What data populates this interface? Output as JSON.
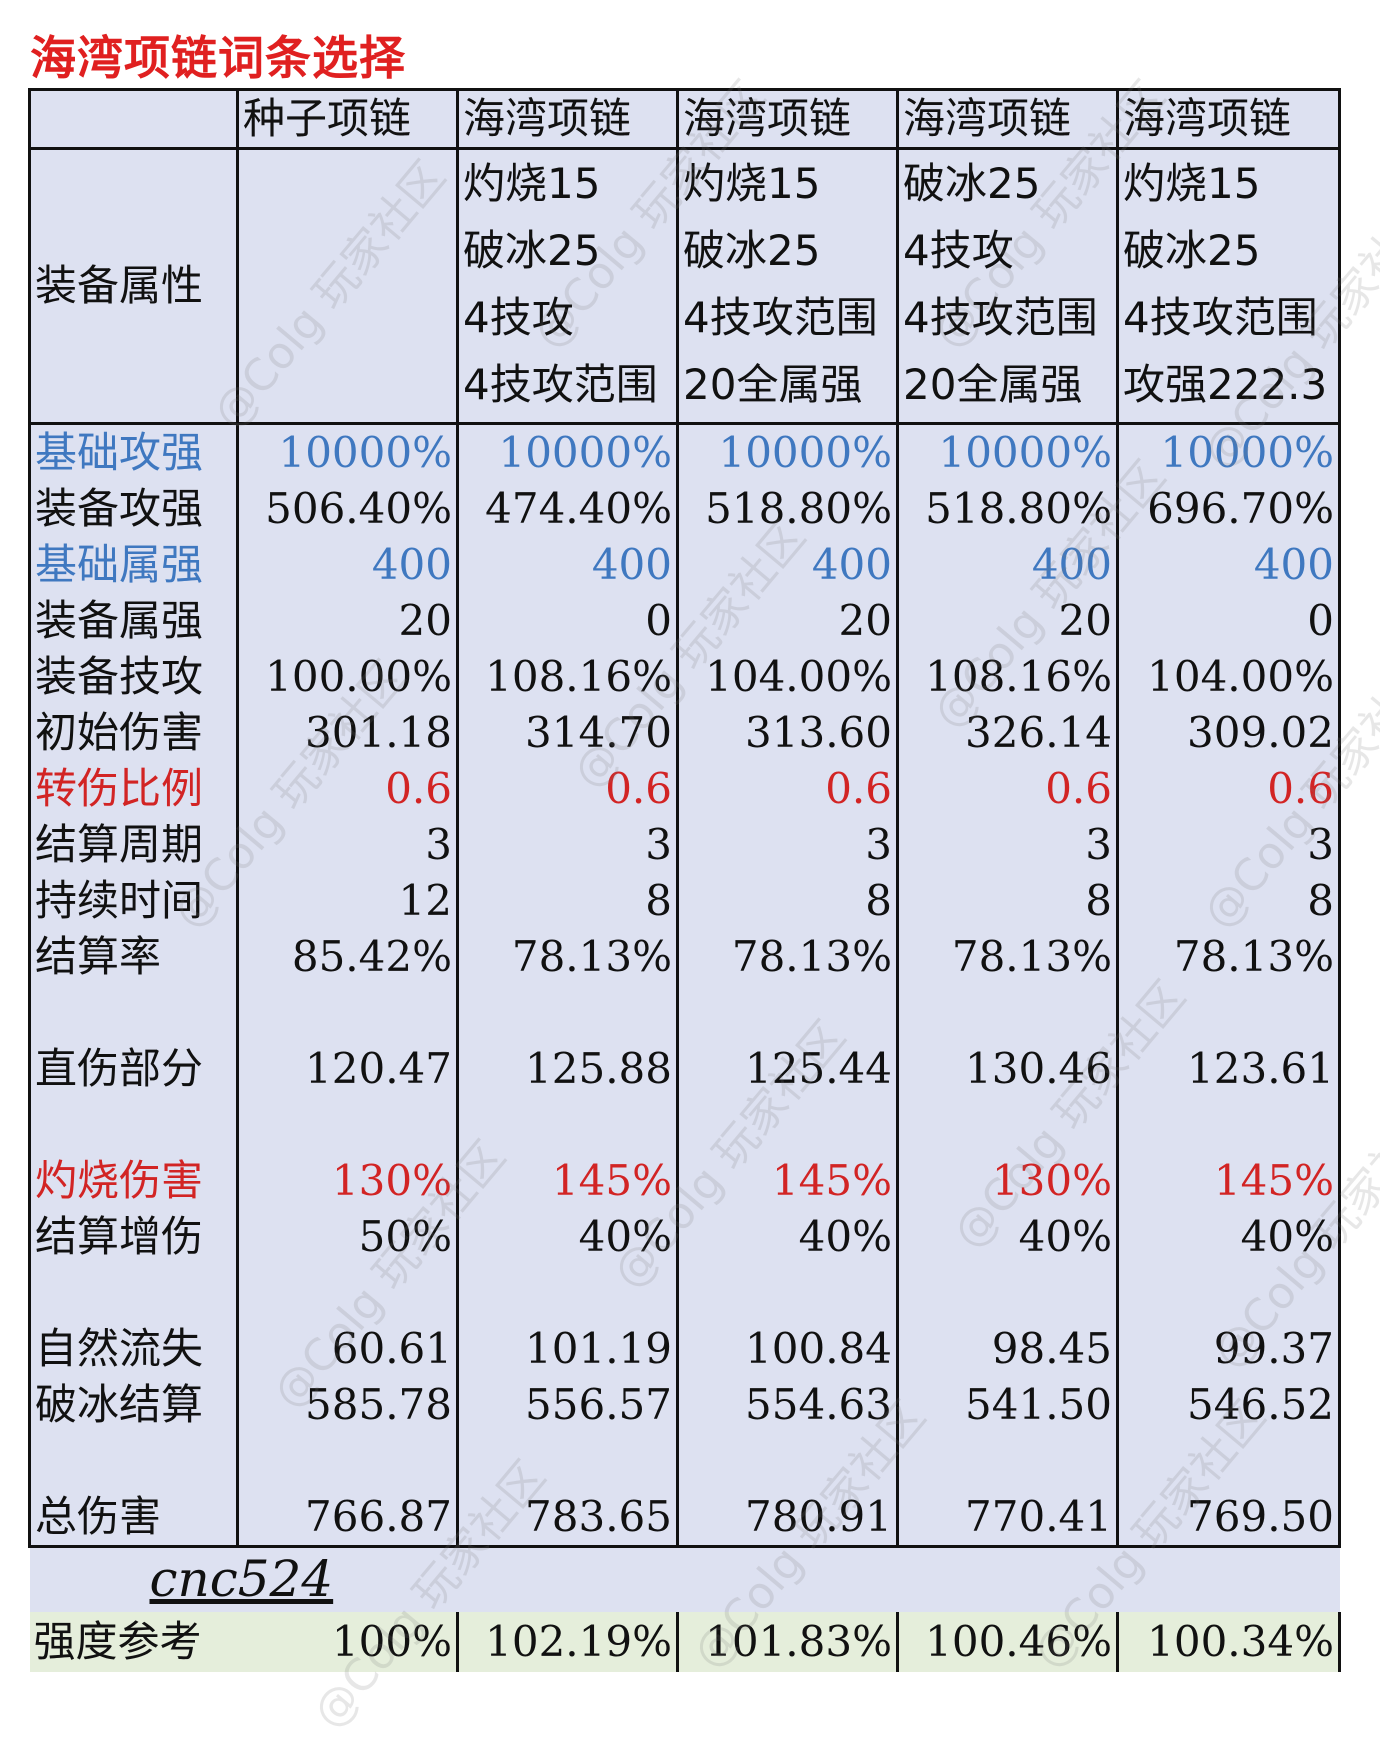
{
  "title": "海湾项链词条选择",
  "chart_data": {
    "type": "table",
    "columns": [
      "",
      "种子项链",
      "海湾项链",
      "海湾项链",
      "海湾项链",
      "海湾项链"
    ],
    "attributes": {
      "label": "装备属性",
      "values": [
        [],
        [
          "灼烧15",
          "破冰25",
          "4技攻",
          "4技攻范围"
        ],
        [
          "灼烧15",
          "破冰25",
          "4技攻范围",
          "20全属强"
        ],
        [
          "破冰25",
          "4技攻",
          "4技攻范围",
          "20全属强"
        ],
        [
          "灼烧15",
          "破冰25",
          "4技攻范围",
          "攻强222.3"
        ]
      ]
    },
    "rows": [
      {
        "label": "基础攻强",
        "values": [
          "10000%",
          "10000%",
          "10000%",
          "10000%",
          "10000%"
        ],
        "color": "#3f78c0"
      },
      {
        "label": "装备攻强",
        "values": [
          "506.40%",
          "474.40%",
          "518.80%",
          "518.80%",
          "696.70%"
        ]
      },
      {
        "label": "基础属强",
        "values": [
          "400",
          "400",
          "400",
          "400",
          "400"
        ],
        "color": "#3f78c0"
      },
      {
        "label": "装备属强",
        "values": [
          "20",
          "0",
          "20",
          "20",
          "0"
        ]
      },
      {
        "label": "装备技攻",
        "values": [
          "100.00%",
          "108.16%",
          "104.00%",
          "108.16%",
          "104.00%"
        ]
      },
      {
        "label": "初始伤害",
        "values": [
          "301.18",
          "314.70",
          "313.60",
          "326.14",
          "309.02"
        ]
      },
      {
        "label": "转伤比例",
        "values": [
          "0.6",
          "0.6",
          "0.6",
          "0.6",
          "0.6"
        ],
        "color": "#d22424"
      },
      {
        "label": "结算周期",
        "values": [
          "3",
          "3",
          "3",
          "3",
          "3"
        ]
      },
      {
        "label": "持续时间",
        "values": [
          "12",
          "8",
          "8",
          "8",
          "8"
        ]
      },
      {
        "label": "结算率",
        "values": [
          "85.42%",
          "78.13%",
          "78.13%",
          "78.13%",
          "78.13%"
        ]
      },
      {
        "gap": true
      },
      {
        "label": "直伤部分",
        "values": [
          "120.47",
          "125.88",
          "125.44",
          "130.46",
          "123.61"
        ]
      },
      {
        "gap": true
      },
      {
        "label": "灼烧伤害",
        "values": [
          "130%",
          "145%",
          "145%",
          "130%",
          "145%"
        ],
        "color": "#d22424"
      },
      {
        "label": "结算增伤",
        "values": [
          "50%",
          "40%",
          "40%",
          "40%",
          "40%"
        ]
      },
      {
        "gap": true
      },
      {
        "label": "自然流失",
        "values": [
          "60.61",
          "101.19",
          "100.84",
          "98.45",
          "99.37"
        ]
      },
      {
        "label": "破冰结算",
        "values": [
          "585.78",
          "556.57",
          "554.63",
          "541.50",
          "546.52"
        ]
      },
      {
        "gap": true
      },
      {
        "label": "总伤害",
        "values": [
          "766.87",
          "783.65",
          "780.91",
          "770.41",
          "769.50"
        ]
      }
    ],
    "signature": "cnc524",
    "reference": {
      "label": "强度参考",
      "values": [
        "100%",
        "102.19%",
        "101.83%",
        "100.46%",
        "100.34%"
      ]
    }
  },
  "watermark_text": "@Colg 玩家社区"
}
